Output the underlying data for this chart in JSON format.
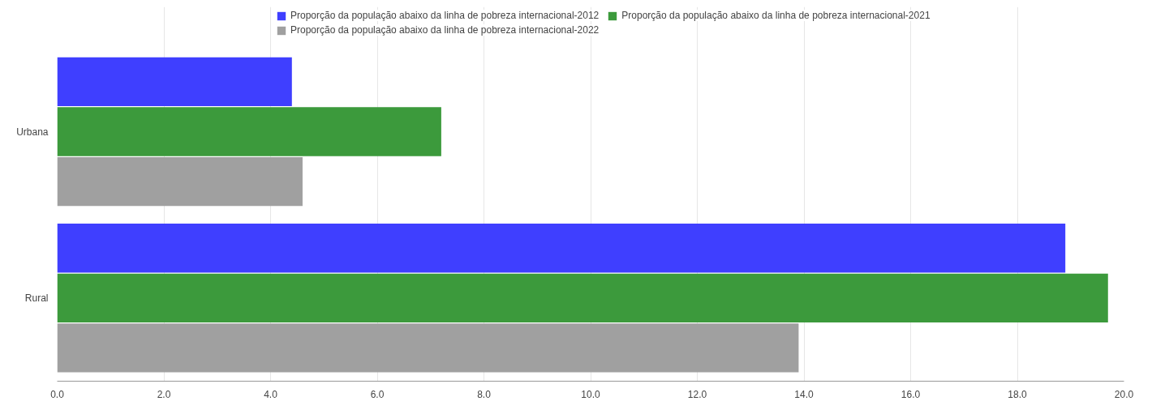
{
  "chart_data": {
    "type": "bar",
    "orientation": "horizontal",
    "categories": [
      "Urbana",
      "Rural"
    ],
    "series": [
      {
        "name": "Proporção da população abaixo da linha de pobreza internacional-2012",
        "color": "#3f3fff",
        "values": [
          4.4,
          18.9
        ]
      },
      {
        "name": "Proporção da população abaixo da linha de pobreza internacional-2021",
        "color": "#3c9a3c",
        "values": [
          7.2,
          19.7
        ]
      },
      {
        "name": "Proporção da população abaixo da linha de pobreza internacional-2022",
        "color": "#a0a0a0",
        "values": [
          4.6,
          13.9
        ]
      }
    ],
    "xlim": [
      0,
      20
    ],
    "xticks": [
      {
        "value": 0,
        "label": "0.0"
      },
      {
        "value": 2,
        "label": "2.0"
      },
      {
        "value": 4,
        "label": "4.0"
      },
      {
        "value": 6,
        "label": "6.0"
      },
      {
        "value": 8,
        "label": "8.0"
      },
      {
        "value": 10,
        "label": "10.0"
      },
      {
        "value": 12,
        "label": "12.0"
      },
      {
        "value": 14,
        "label": "14.0"
      },
      {
        "value": 16,
        "label": "16.0"
      },
      {
        "value": 18,
        "label": "18.0"
      },
      {
        "value": 20,
        "label": "20.0"
      }
    ],
    "grid": "x",
    "legend": "top"
  }
}
